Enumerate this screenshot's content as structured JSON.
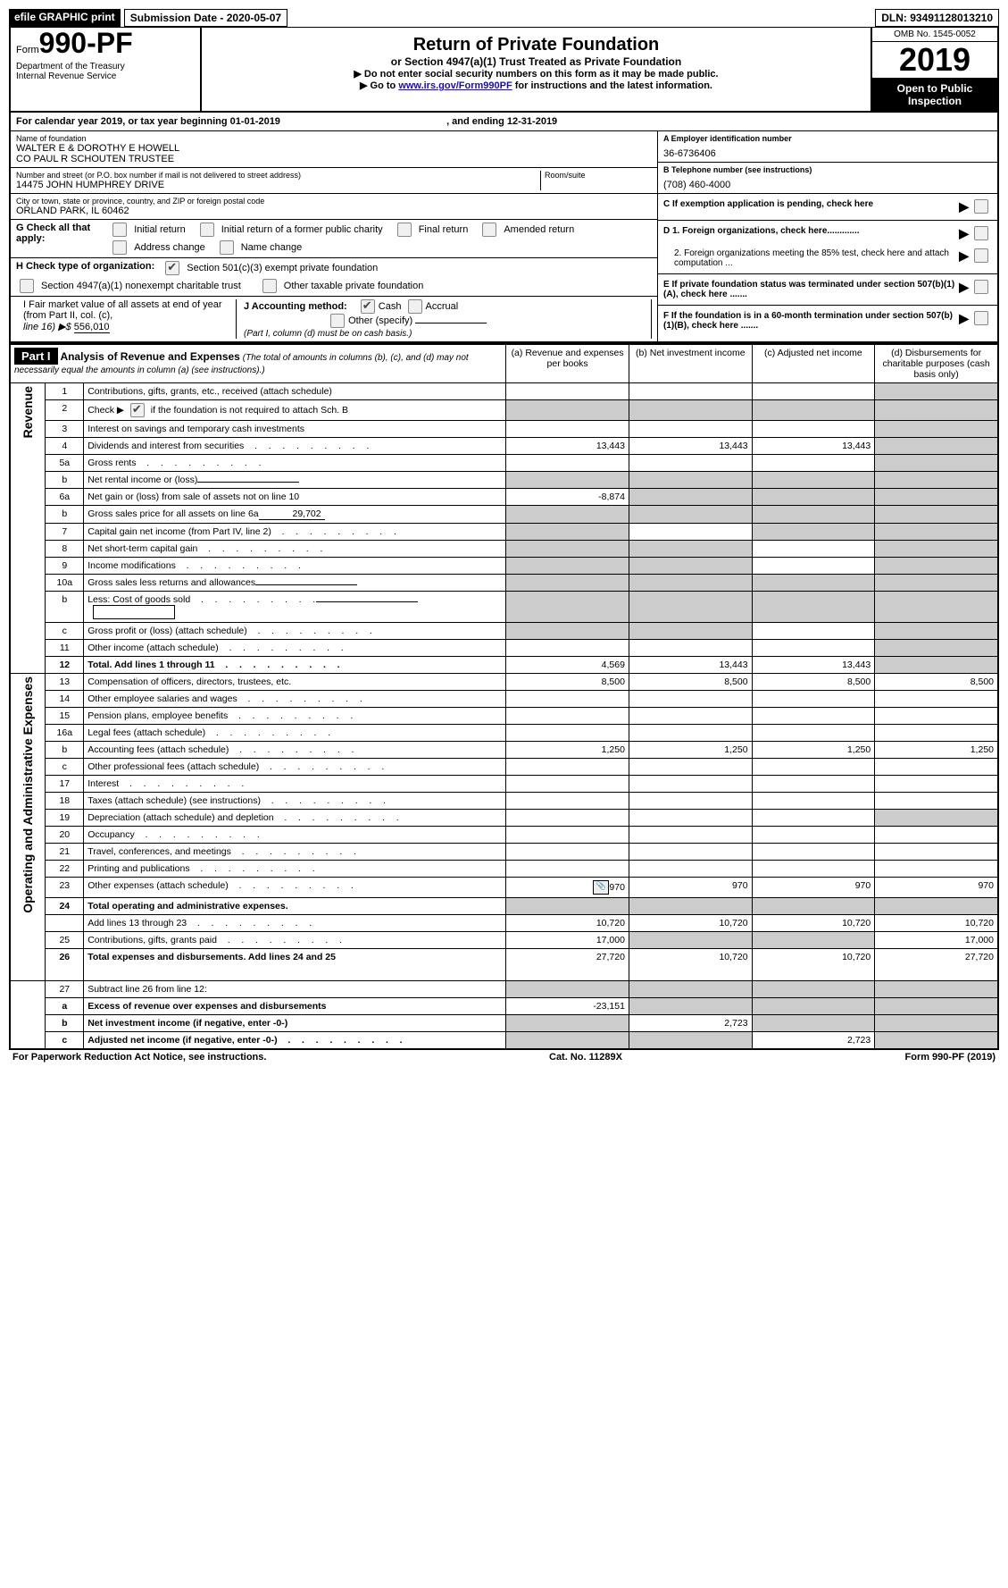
{
  "topbar": {
    "efile": "efile GRAPHIC print",
    "subdate_label": "Submission Date - ",
    "subdate": "2020-05-07",
    "dln_label": "DLN: ",
    "dln": "93491128013210"
  },
  "header": {
    "form_word": "Form",
    "form_no": "990-PF",
    "dept": "Department of the Treasury",
    "irs": "Internal Revenue Service",
    "title": "Return of Private Foundation",
    "subtitle": "or Section 4947(a)(1) Trust Treated as Private Foundation",
    "warn": "▶ Do not enter social security numbers on this form as it may be made public.",
    "goto_pre": "▶ Go to ",
    "goto_link": "www.irs.gov/Form990PF",
    "goto_post": " for instructions and the latest information.",
    "omb": "OMB No. 1545-0052",
    "year": "2019",
    "open": "Open to Public Inspection"
  },
  "cal": {
    "pre": "For calendar year 2019, or tax year beginning ",
    "begin": "01-01-2019",
    "mid": ", and ending ",
    "end": "12-31-2019"
  },
  "info": {
    "name_lbl": "Name of foundation",
    "name1": "WALTER E & DOROTHY E HOWELL",
    "name2": "CO PAUL R SCHOUTEN TRUSTEE",
    "addr_lbl": "Number and street (or P.O. box number if mail is not delivered to street address)",
    "addr": "14475 JOHN HUMPHREY DRIVE",
    "room_lbl": "Room/suite",
    "room": "",
    "city_lbl": "City or town, state or province, country, and ZIP or foreign postal code",
    "city": "ORLAND PARK, IL  60462",
    "a_lbl": "A Employer identification number",
    "a_val": "36-6736406",
    "b_lbl": "B Telephone number (see instructions)",
    "b_val": "(708) 460-4000",
    "c_lbl": "C  If exemption application is pending, check here",
    "d1": "D 1. Foreign organizations, check here.............",
    "d2": "2. Foreign organizations meeting the 85% test, check here and attach computation ...",
    "e_lbl": "E  If private foundation status was terminated under section 507(b)(1)(A), check here .......",
    "f_lbl": "F  If the foundation is in a 60-month termination under section 507(b)(1)(B), check here ......."
  },
  "g": {
    "lbl": "G Check all that apply:",
    "o1": "Initial return",
    "o2": "Initial return of a former public charity",
    "o3": "Final return",
    "o4": "Amended return",
    "o5": "Address change",
    "o6": "Name change"
  },
  "h": {
    "lbl": "H Check type of organization:",
    "o1": "Section 501(c)(3) exempt private foundation",
    "o2": "Section 4947(a)(1) nonexempt charitable trust",
    "o3": "Other taxable private foundation"
  },
  "i": {
    "c1a": "I Fair market value of all assets at end of year (from Part II, col. (c),",
    "c1b": "line 16) ▶$ ",
    "c1v": "556,010",
    "c2a": "J Accounting method:",
    "c2o1": "Cash",
    "c2o2": "Accrual",
    "c2o3": "Other (specify)",
    "c2note": "(Part I, column (d) must be on cash basis.)"
  },
  "part1": {
    "label": "Part I",
    "title": "Analysis of Revenue and Expenses",
    "title_note": " (The total of amounts in columns (b), (c), and (d) may not necessarily equal the amounts in column (a) (see instructions).)",
    "cols": {
      "a": "(a)     Revenue and expenses per books",
      "b": "(b)     Net investment income",
      "c": "(c)     Adjusted net income",
      "d": "(d)     Disbursements for charitable purposes (cash basis only)"
    },
    "vrev": "Revenue",
    "vexp": "Operating and Administrative Expenses",
    "rows": [
      {
        "n": "1",
        "d": "Contributions, gifts, grants, etc., received (attach schedule)",
        "a": "",
        "b": "",
        "c": "",
        "dd": "",
        "shade": {
          "b": false,
          "c": false,
          "d": true
        }
      },
      {
        "n": "2",
        "d": "Check ▶ [cb] if the foundation is not required to attach Sch. B",
        "a": "",
        "b": "",
        "c": "",
        "dd": "",
        "shade": {
          "a": true,
          "b": true,
          "c": true,
          "d": true
        },
        "nobord": true,
        "hasCheck": true
      },
      {
        "n": "3",
        "d": "Interest on savings and temporary cash investments",
        "a": "",
        "b": "",
        "c": "",
        "dd": "",
        "shade": {
          "d": true
        }
      },
      {
        "n": "4",
        "d": "Dividends and interest from securities",
        "a": "13,443",
        "b": "13,443",
        "c": "13,443",
        "dd": "",
        "shade": {
          "d": true
        },
        "dots": true
      },
      {
        "n": "5a",
        "d": "Gross rents",
        "a": "",
        "b": "",
        "c": "",
        "dd": "",
        "shade": {
          "d": true
        },
        "dots": true
      },
      {
        "n": "b",
        "d": "Net rental income or (loss)",
        "a": "",
        "b": "",
        "c": "",
        "dd": "",
        "shade": {
          "a": true,
          "b": true,
          "c": true,
          "d": true
        },
        "under": true
      },
      {
        "n": "6a",
        "d": "Net gain or (loss) from sale of assets not on line 10",
        "a": "-8,874",
        "b": "",
        "c": "",
        "dd": "",
        "shade": {
          "b": true,
          "c": true,
          "d": true
        }
      },
      {
        "n": "b",
        "d": "Gross sales price for all assets on line 6a",
        "a": "",
        "b": "",
        "c": "",
        "dd": "",
        "shade": {
          "a": true,
          "b": true,
          "c": true,
          "d": true
        },
        "inlineVal": "29,702"
      },
      {
        "n": "7",
        "d": "Capital gain net income (from Part IV, line 2)",
        "a": "",
        "b": "",
        "c": "",
        "dd": "",
        "shade": {
          "a": true,
          "c": true,
          "d": true
        },
        "dots": true
      },
      {
        "n": "8",
        "d": "Net short-term capital gain",
        "a": "",
        "b": "",
        "c": "",
        "dd": "",
        "shade": {
          "a": true,
          "b": true,
          "d": true
        },
        "dots": true
      },
      {
        "n": "9",
        "d": "Income modifications",
        "a": "",
        "b": "",
        "c": "",
        "dd": "",
        "shade": {
          "a": true,
          "b": true,
          "d": true
        },
        "dots": true
      },
      {
        "n": "10a",
        "d": "Gross sales less returns and allowances",
        "a": "",
        "b": "",
        "c": "",
        "dd": "",
        "shade": {
          "a": true,
          "b": true,
          "c": true,
          "d": true
        },
        "under": true
      },
      {
        "n": "b",
        "d": "Less: Cost of goods sold",
        "a": "",
        "b": "",
        "c": "",
        "dd": "",
        "shade": {
          "a": true,
          "b": true,
          "c": true,
          "d": true
        },
        "dots": true,
        "under": true,
        "box": true
      },
      {
        "n": "c",
        "d": "Gross profit or (loss) (attach schedule)",
        "a": "",
        "b": "",
        "c": "",
        "dd": "",
        "shade": {
          "a": true,
          "b": true,
          "d": true
        },
        "dots": true
      },
      {
        "n": "11",
        "d": "Other income (attach schedule)",
        "a": "",
        "b": "",
        "c": "",
        "dd": "",
        "shade": {
          "d": true
        },
        "dots": true
      },
      {
        "n": "12",
        "d": "Total. Add lines 1 through 11",
        "a": "4,569",
        "b": "13,443",
        "c": "13,443",
        "dd": "",
        "shade": {
          "d": true
        },
        "dots": true,
        "bold": true
      }
    ],
    "exp_rows": [
      {
        "n": "13",
        "d": "Compensation of officers, directors, trustees, etc.",
        "a": "8,500",
        "b": "8,500",
        "c": "8,500",
        "dd": "8,500"
      },
      {
        "n": "14",
        "d": "Other employee salaries and wages",
        "dots": true
      },
      {
        "n": "15",
        "d": "Pension plans, employee benefits",
        "dots": true
      },
      {
        "n": "16a",
        "d": "Legal fees (attach schedule)",
        "dots": true
      },
      {
        "n": "b",
        "d": "Accounting fees (attach schedule)",
        "a": "1,250",
        "b": "1,250",
        "c": "1,250",
        "dd": "1,250",
        "dots": true
      },
      {
        "n": "c",
        "d": "Other professional fees (attach schedule)",
        "dots": true
      },
      {
        "n": "17",
        "d": "Interest",
        "dots": true
      },
      {
        "n": "18",
        "d": "Taxes (attach schedule) (see instructions)",
        "dots": true
      },
      {
        "n": "19",
        "d": "Depreciation (attach schedule) and depletion",
        "shade": {
          "d": true
        },
        "dots": true
      },
      {
        "n": "20",
        "d": "Occupancy",
        "dots": true
      },
      {
        "n": "21",
        "d": "Travel, conferences, and meetings",
        "dots": true
      },
      {
        "n": "22",
        "d": "Printing and publications",
        "dots": true
      },
      {
        "n": "23",
        "d": "Other expenses (attach schedule)",
        "a": "970",
        "b": "970",
        "c": "970",
        "dd": "970",
        "dots": true,
        "icon": true
      },
      {
        "n": "24",
        "d": "Total operating and administrative expenses.",
        "bold": true,
        "nobord": true,
        "shade": {
          "a": true,
          "b": true,
          "c": true,
          "d": true
        }
      },
      {
        "n": "",
        "d": "Add lines 13 through 23",
        "a": "10,720",
        "b": "10,720",
        "c": "10,720",
        "dd": "10,720",
        "dots": true
      },
      {
        "n": "25",
        "d": "Contributions, gifts, grants paid",
        "a": "17,000",
        "dd": "17,000",
        "shade": {
          "b": true,
          "c": true
        },
        "dots": true
      },
      {
        "n": "26",
        "d": "Total expenses and disbursements. Add lines 24 and 25",
        "a": "27,720",
        "b": "10,720",
        "c": "10,720",
        "dd": "27,720",
        "bold": true,
        "tall": true
      }
    ],
    "sub_rows": [
      {
        "n": "27",
        "d": "Subtract line 26 from line 12:",
        "shade": {
          "a": true,
          "b": true,
          "c": true,
          "d": true
        }
      },
      {
        "n": "a",
        "d": "Excess of revenue over expenses and disbursements",
        "a": "-23,151",
        "shade": {
          "b": true,
          "c": true,
          "d": true
        },
        "bold": true
      },
      {
        "n": "b",
        "d": "Net investment income (if negative, enter -0-)",
        "b": "2,723",
        "shade": {
          "a": true,
          "c": true,
          "d": true
        },
        "bold": true
      },
      {
        "n": "c",
        "d": "Adjusted net income (if negative, enter -0-)",
        "c": "2,723",
        "shade": {
          "a": true,
          "b": true,
          "d": true
        },
        "bold": true,
        "dots": true
      }
    ]
  },
  "footer": {
    "l": "For Paperwork Reduction Act Notice, see instructions.",
    "m": "Cat. No. 11289X",
    "r": "Form 990-PF (2019)"
  }
}
